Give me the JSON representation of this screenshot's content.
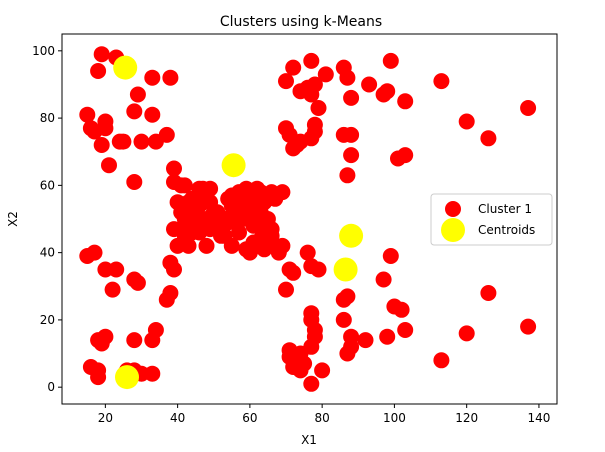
{
  "chart_data": {
    "type": "scatter",
    "title": "Clusters using k-Means",
    "xlabel": "X1",
    "ylabel": "X2",
    "xlim": [
      8,
      145
    ],
    "ylim": [
      -5,
      105
    ],
    "xticks": [
      20,
      40,
      60,
      80,
      100,
      120,
      140
    ],
    "yticks": [
      0,
      20,
      40,
      60,
      80,
      100
    ],
    "grid": false,
    "legend_position": "right",
    "series": [
      {
        "name": "Cluster 1",
        "color": "#ff0000",
        "marker": "circle",
        "points": [
          [
            19,
            99
          ],
          [
            18,
            94
          ],
          [
            23,
            98
          ],
          [
            33,
            92
          ],
          [
            38,
            92
          ],
          [
            15,
            81
          ],
          [
            16,
            77
          ],
          [
            17,
            76
          ],
          [
            19,
            72
          ],
          [
            20,
            79
          ],
          [
            20,
            77
          ],
          [
            24,
            73
          ],
          [
            25,
            73
          ],
          [
            29,
            87
          ],
          [
            28,
            82
          ],
          [
            30,
            73
          ],
          [
            33,
            81
          ],
          [
            34,
            73
          ],
          [
            37,
            75
          ],
          [
            21,
            66
          ],
          [
            28,
            61
          ],
          [
            70,
            91
          ],
          [
            72,
            95
          ],
          [
            74,
            88
          ],
          [
            77,
            97
          ],
          [
            78,
            90
          ],
          [
            77,
            87
          ],
          [
            76,
            89
          ],
          [
            81,
            93
          ],
          [
            86,
            95
          ],
          [
            87,
            92
          ],
          [
            88,
            86
          ],
          [
            93,
            90
          ],
          [
            97,
            87
          ],
          [
            98,
            88
          ],
          [
            99,
            97
          ],
          [
            103,
            85
          ],
          [
            70,
            77
          ],
          [
            71,
            75
          ],
          [
            72,
            71
          ],
          [
            73,
            72
          ],
          [
            74,
            73
          ],
          [
            77,
            74
          ],
          [
            78,
            76
          ],
          [
            78,
            78
          ],
          [
            79,
            83
          ],
          [
            86,
            75
          ],
          [
            88,
            75
          ],
          [
            88,
            69
          ],
          [
            87,
            63
          ],
          [
            101,
            68
          ],
          [
            103,
            69
          ],
          [
            113,
            91
          ],
          [
            120,
            79
          ],
          [
            126,
            74
          ],
          [
            137,
            83
          ],
          [
            39,
            65
          ],
          [
            39,
            61
          ],
          [
            41,
            60
          ],
          [
            42,
            60
          ],
          [
            43,
            55
          ],
          [
            44,
            56
          ],
          [
            45,
            52
          ],
          [
            46,
            54
          ],
          [
            46,
            59
          ],
          [
            47,
            59
          ],
          [
            48,
            57
          ],
          [
            49,
            59
          ],
          [
            49,
            55
          ],
          [
            50,
            52
          ],
          [
            50,
            50
          ],
          [
            51,
            52
          ],
          [
            53,
            50
          ],
          [
            54,
            56
          ],
          [
            55,
            57
          ],
          [
            55,
            54
          ],
          [
            57,
            58
          ],
          [
            58,
            55
          ],
          [
            59,
            59
          ],
          [
            60,
            57
          ],
          [
            61,
            56
          ],
          [
            62,
            59
          ],
          [
            63,
            58
          ],
          [
            64,
            55
          ],
          [
            65,
            57
          ],
          [
            66,
            58
          ],
          [
            67,
            56
          ],
          [
            69,
            58
          ],
          [
            40,
            55
          ],
          [
            41,
            52
          ],
          [
            42,
            50
          ],
          [
            43,
            48
          ],
          [
            44,
            51
          ],
          [
            45,
            49
          ],
          [
            46,
            46
          ],
          [
            47,
            48
          ],
          [
            48,
            50
          ],
          [
            49,
            47
          ],
          [
            51,
            48
          ],
          [
            53,
            45
          ],
          [
            54,
            49
          ],
          [
            55,
            51
          ],
          [
            56,
            49
          ],
          [
            57,
            52
          ],
          [
            58,
            50
          ],
          [
            59,
            51
          ],
          [
            60,
            53
          ],
          [
            61,
            48
          ],
          [
            62,
            50
          ],
          [
            63,
            52
          ],
          [
            64,
            48
          ],
          [
            65,
            50
          ],
          [
            66,
            47
          ],
          [
            39,
            47
          ],
          [
            40,
            42
          ],
          [
            42,
            45
          ],
          [
            43,
            42
          ],
          [
            44,
            46
          ],
          [
            46,
            47
          ],
          [
            48,
            42
          ],
          [
            52,
            45
          ],
          [
            55,
            42
          ],
          [
            57,
            46
          ],
          [
            59,
            41
          ],
          [
            60,
            40
          ],
          [
            61,
            43
          ],
          [
            62,
            42
          ],
          [
            63,
            44
          ],
          [
            64,
            41
          ],
          [
            65,
            43
          ],
          [
            66,
            45
          ],
          [
            68,
            40
          ],
          [
            69,
            42
          ],
          [
            15,
            39
          ],
          [
            17,
            40
          ],
          [
            20,
            35
          ],
          [
            23,
            35
          ],
          [
            28,
            32
          ],
          [
            29,
            31
          ],
          [
            22,
            29
          ],
          [
            39,
            35
          ],
          [
            38,
            37
          ],
          [
            38,
            28
          ],
          [
            37,
            26
          ],
          [
            34,
            17
          ],
          [
            33,
            14
          ],
          [
            18,
            14
          ],
          [
            20,
            15
          ],
          [
            19,
            13
          ],
          [
            28,
            14
          ],
          [
            16,
            6
          ],
          [
            18,
            5
          ],
          [
            18,
            3
          ],
          [
            26,
            5
          ],
          [
            28,
            5
          ],
          [
            30,
            4
          ],
          [
            33,
            4
          ],
          [
            70,
            29
          ],
          [
            71,
            35
          ],
          [
            72,
            34
          ],
          [
            76,
            40
          ],
          [
            77,
            36
          ],
          [
            79,
            35
          ],
          [
            77,
            22
          ],
          [
            77,
            20
          ],
          [
            78,
            17
          ],
          [
            78,
            15
          ],
          [
            77,
            12
          ],
          [
            71,
            9
          ],
          [
            71,
            11
          ],
          [
            74,
            10
          ],
          [
            75,
            7
          ],
          [
            72,
            6
          ],
          [
            74,
            5
          ],
          [
            77,
            1
          ],
          [
            80,
            5
          ],
          [
            86,
            26
          ],
          [
            87,
            27
          ],
          [
            86,
            20
          ],
          [
            87,
            10
          ],
          [
            88,
            12
          ],
          [
            88,
            15
          ],
          [
            92,
            14
          ],
          [
            98,
            15
          ],
          [
            97,
            32
          ],
          [
            99,
            39
          ],
          [
            100,
            24
          ],
          [
            102,
            23
          ],
          [
            103,
            17
          ],
          [
            113,
            8
          ],
          [
            120,
            16
          ],
          [
            126,
            28
          ],
          [
            137,
            18
          ]
        ]
      },
      {
        "name": "Centroids",
        "color": "#ffff00",
        "marker": "circle",
        "points": [
          [
            25.5,
            95
          ],
          [
            55.5,
            66
          ],
          [
            88,
            45
          ],
          [
            86.5,
            35
          ],
          [
            26,
            3
          ]
        ]
      }
    ]
  }
}
